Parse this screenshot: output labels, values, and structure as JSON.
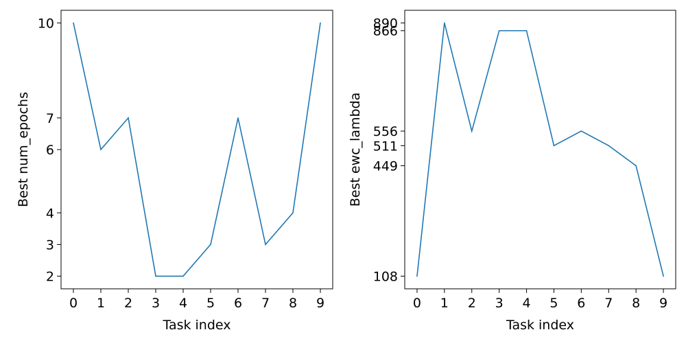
{
  "chart_data": [
    {
      "type": "line",
      "title": "",
      "xlabel": "Task index",
      "ylabel": "Best num_epochs",
      "x": [
        0,
        1,
        2,
        3,
        4,
        5,
        6,
        7,
        8,
        9
      ],
      "xticks": [
        "0",
        "1",
        "2",
        "3",
        "4",
        "5",
        "6",
        "7",
        "8",
        "9"
      ],
      "values": [
        10,
        6,
        7,
        2,
        2,
        3,
        7,
        3,
        4,
        10
      ],
      "yticks": [
        2,
        3,
        4,
        6,
        7,
        10
      ],
      "xlim": [
        -0.45,
        9.45
      ],
      "ylim": [
        1.6,
        10.4
      ],
      "color": "#1f77b4",
      "grid": false
    },
    {
      "type": "line",
      "title": "",
      "xlabel": "Task index",
      "ylabel": "Best ewc_lambda",
      "x": [
        0,
        1,
        2,
        3,
        4,
        5,
        6,
        7,
        8,
        9
      ],
      "xticks": [
        "0",
        "1",
        "2",
        "3",
        "4",
        "5",
        "6",
        "7",
        "8",
        "9"
      ],
      "values": [
        108,
        890,
        556,
        866,
        866,
        511,
        556,
        511,
        449,
        108
      ],
      "yticks": [
        108,
        449,
        511,
        556,
        866,
        890
      ],
      "xlim": [
        -0.45,
        9.45
      ],
      "ylim": [
        69,
        929
      ],
      "color": "#1f77b4",
      "grid": false
    }
  ]
}
